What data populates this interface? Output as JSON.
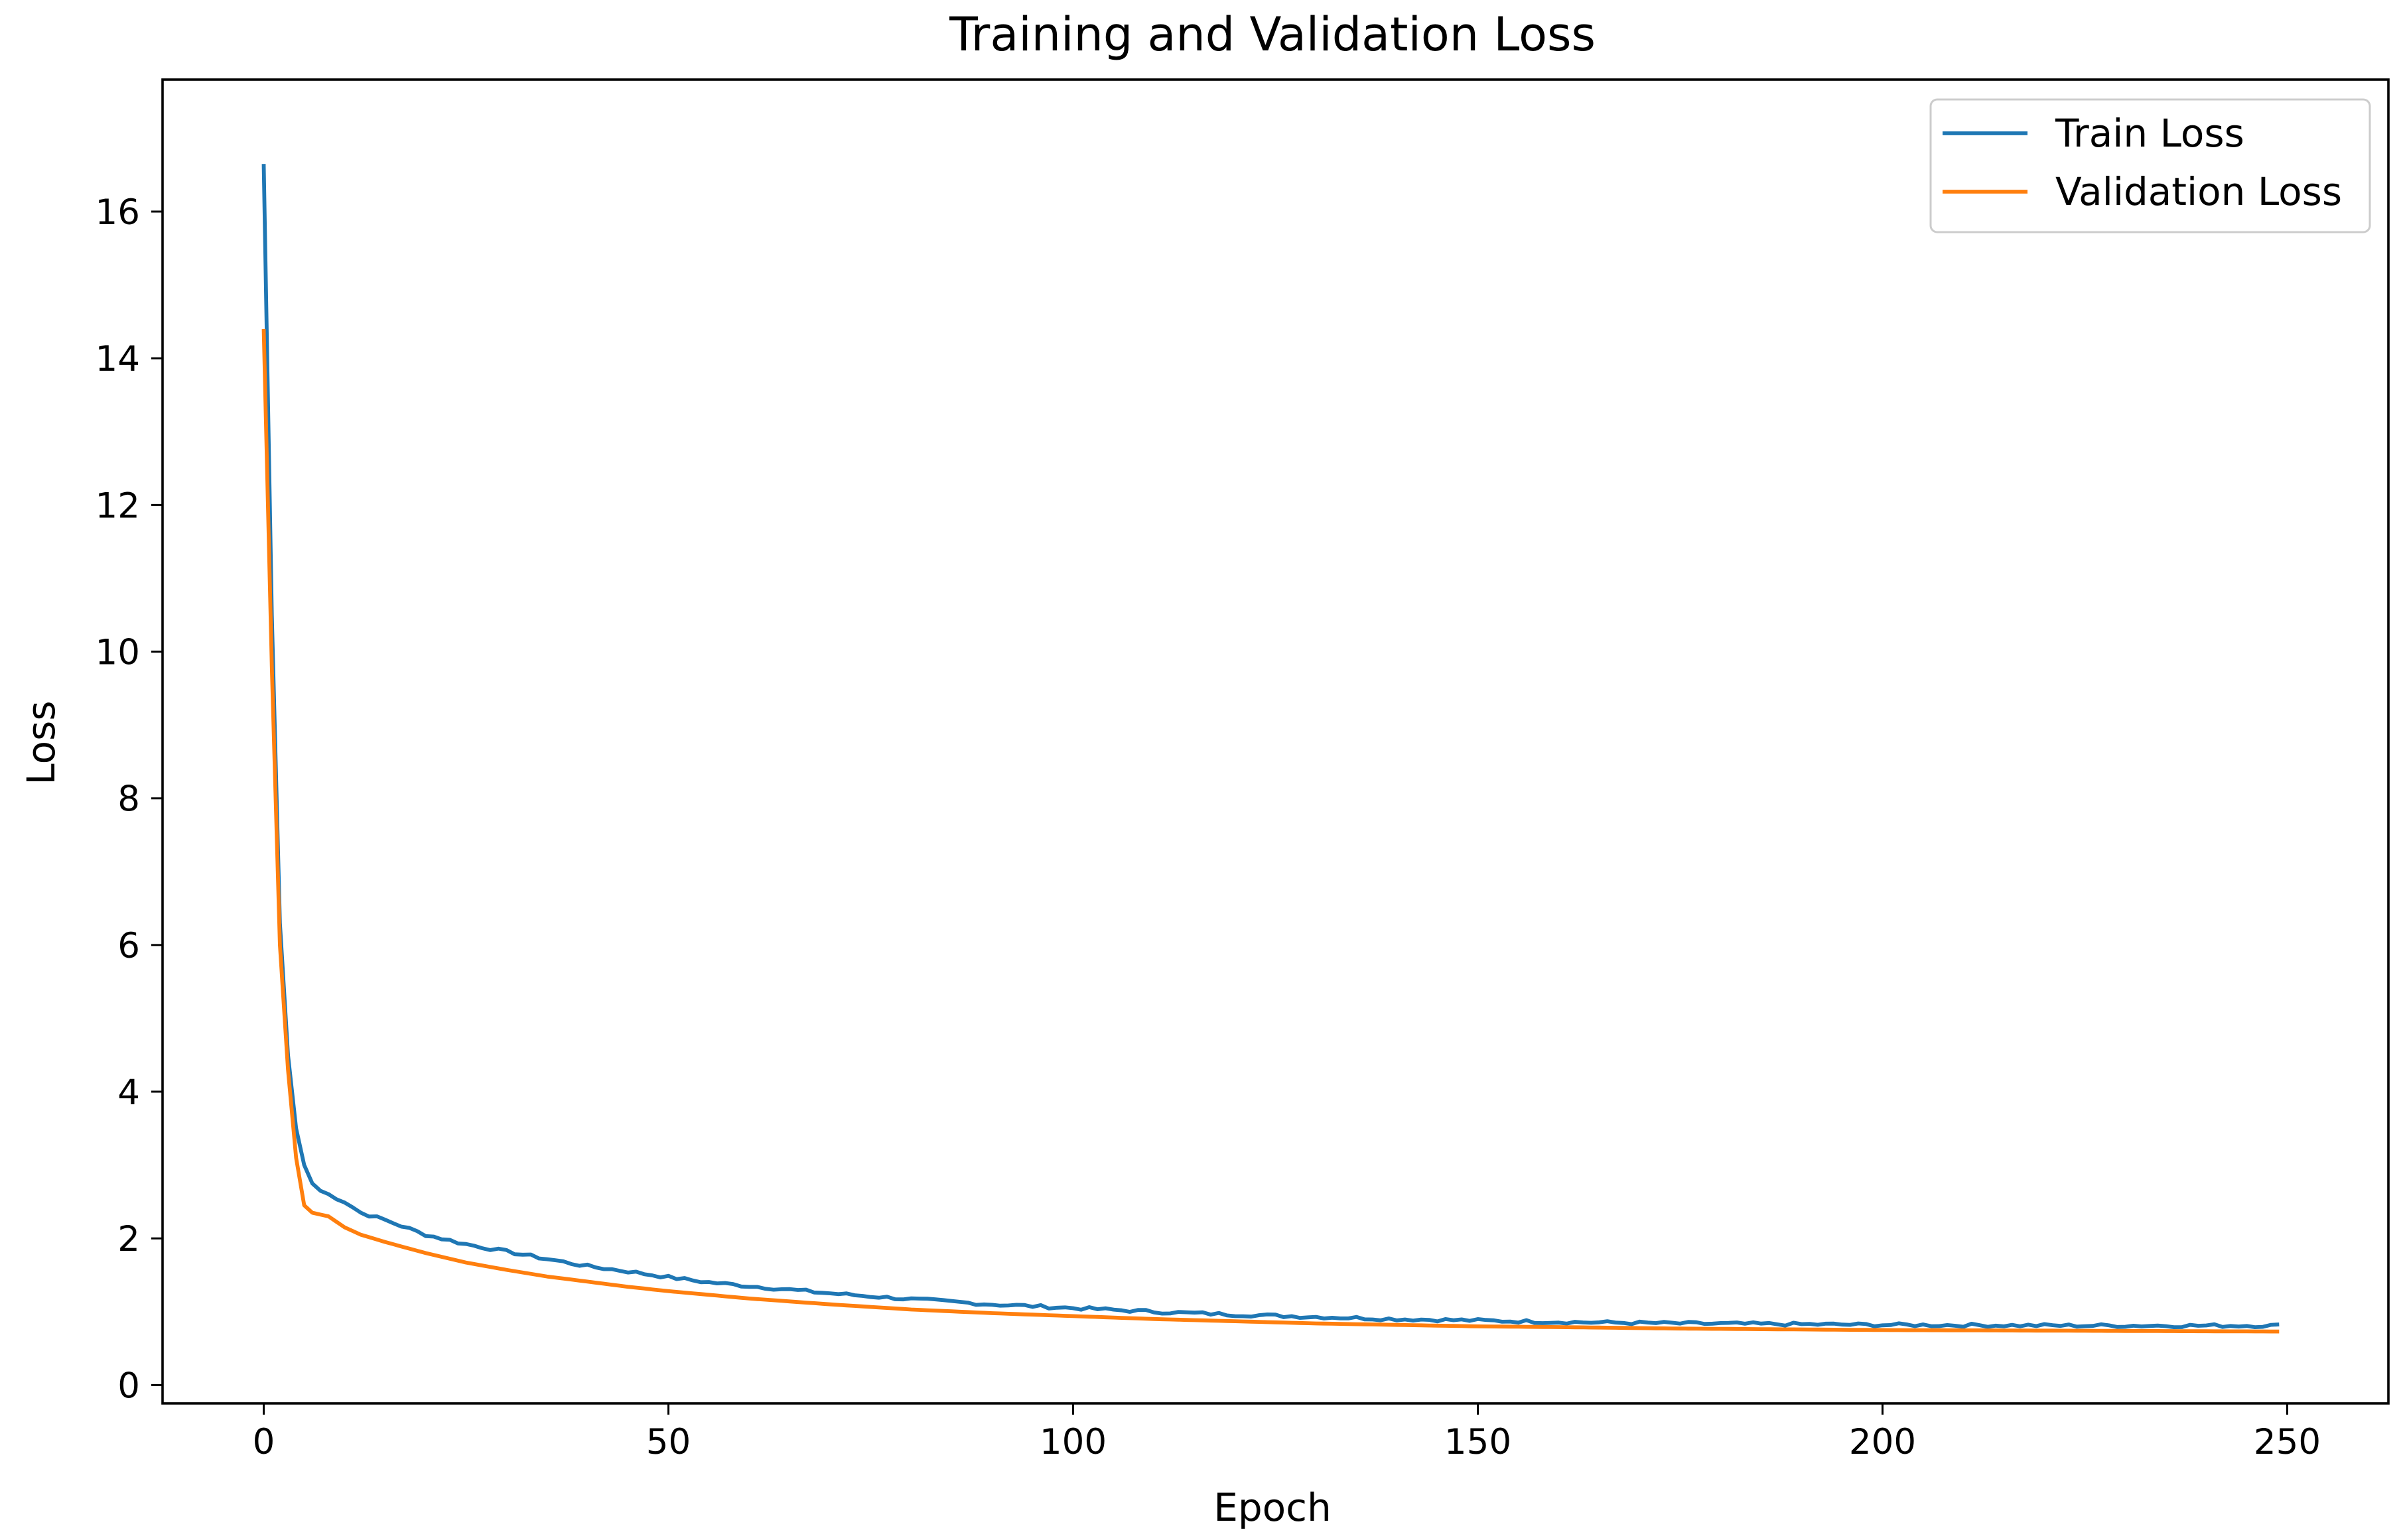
{
  "chart_data": {
    "type": "line",
    "title": "Training and Validation Loss",
    "xlabel": "Epoch",
    "ylabel": "Loss",
    "xlim": [
      -12.5,
      262.5
    ],
    "ylim": [
      -0.25,
      17.8
    ],
    "xticks": [
      0,
      50,
      100,
      150,
      200,
      250
    ],
    "xtick_labels": [
      "0",
      "50",
      "100",
      "150",
      "200",
      "250"
    ],
    "yticks": [
      0,
      2,
      4,
      6,
      8,
      10,
      12,
      14,
      16
    ],
    "ytick_labels": [
      "0",
      "2",
      "4",
      "6",
      "8",
      "10",
      "12",
      "14",
      "16"
    ],
    "grid": false,
    "legend_position": "top-right",
    "series": [
      {
        "name": "Train Loss",
        "color": "#1f77b4",
        "epochs": 250,
        "points": [
          [
            0,
            16.65
          ],
          [
            1,
            10.5
          ],
          [
            2,
            6.3
          ],
          [
            3,
            4.5
          ],
          [
            4,
            3.5
          ],
          [
            5,
            3.0
          ],
          [
            6,
            2.75
          ],
          [
            7,
            2.65
          ],
          [
            8,
            2.6
          ],
          [
            10,
            2.5
          ],
          [
            12,
            2.35
          ],
          [
            15,
            2.25
          ],
          [
            20,
            2.05
          ],
          [
            25,
            1.92
          ],
          [
            30,
            1.82
          ],
          [
            35,
            1.72
          ],
          [
            40,
            1.62
          ],
          [
            45,
            1.55
          ],
          [
            50,
            1.47
          ],
          [
            55,
            1.4
          ],
          [
            60,
            1.35
          ],
          [
            70,
            1.25
          ],
          [
            80,
            1.17
          ],
          [
            90,
            1.1
          ],
          [
            100,
            1.05
          ],
          [
            110,
            1.0
          ],
          [
            120,
            0.96
          ],
          [
            130,
            0.93
          ],
          [
            140,
            0.9
          ],
          [
            150,
            0.88
          ],
          [
            160,
            0.86
          ],
          [
            175,
            0.84
          ],
          [
            200,
            0.82
          ],
          [
            225,
            0.81
          ],
          [
            249,
            0.81
          ]
        ]
      },
      {
        "name": "Validation Loss",
        "color": "#ff7f0e",
        "epochs": 250,
        "points": [
          [
            0,
            14.4
          ],
          [
            1,
            9.8
          ],
          [
            2,
            6.0
          ],
          [
            3,
            4.3
          ],
          [
            4,
            3.1
          ],
          [
            5,
            2.45
          ],
          [
            6,
            2.35
          ],
          [
            8,
            2.3
          ],
          [
            10,
            2.15
          ],
          [
            12,
            2.05
          ],
          [
            15,
            1.95
          ],
          [
            20,
            1.8
          ],
          [
            25,
            1.67
          ],
          [
            30,
            1.57
          ],
          [
            35,
            1.48
          ],
          [
            40,
            1.41
          ],
          [
            45,
            1.34
          ],
          [
            50,
            1.28
          ],
          [
            55,
            1.23
          ],
          [
            60,
            1.18
          ],
          [
            70,
            1.1
          ],
          [
            80,
            1.03
          ],
          [
            90,
            0.98
          ],
          [
            100,
            0.94
          ],
          [
            110,
            0.9
          ],
          [
            120,
            0.87
          ],
          [
            130,
            0.84
          ],
          [
            140,
            0.82
          ],
          [
            150,
            0.8
          ],
          [
            160,
            0.79
          ],
          [
            175,
            0.77
          ],
          [
            200,
            0.75
          ],
          [
            225,
            0.74
          ],
          [
            249,
            0.73
          ]
        ]
      }
    ]
  }
}
